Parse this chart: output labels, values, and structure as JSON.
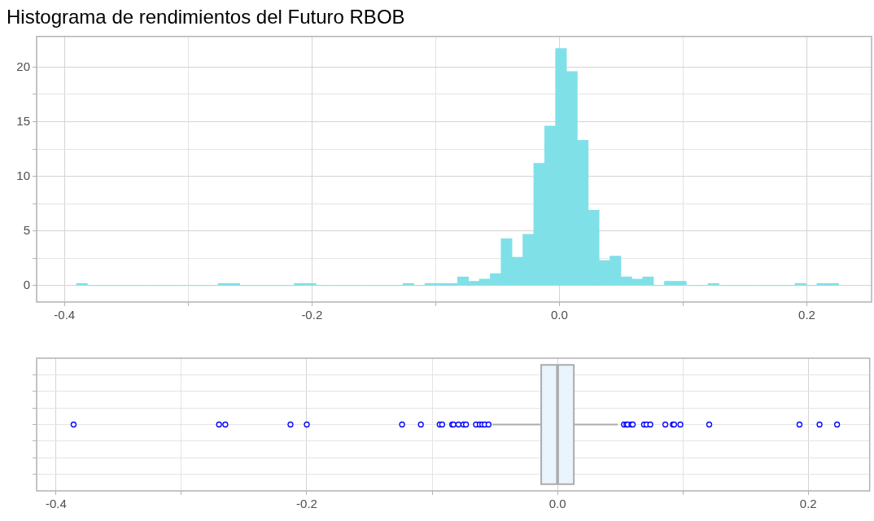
{
  "chart_data": [
    {
      "type": "histogram",
      "title": "Histograma de rendimientos del Futuro RBOB",
      "color": "#7fe0e8",
      "bins": [
        -0.3903,
        -0.3815,
        -0.3727,
        -0.3639,
        -0.3551,
        -0.3463,
        -0.3375,
        -0.3287,
        -0.3199,
        -0.3111,
        -0.3023,
        -0.2935,
        -0.2847,
        -0.2759,
        -0.2671,
        -0.2583,
        -0.2495,
        -0.2407,
        -0.2319,
        -0.2231,
        -0.2143,
        -0.2055,
        -0.1967,
        -0.1879,
        -0.1791,
        -0.1703,
        -0.1615,
        -0.1527,
        -0.1439,
        -0.1351,
        -0.1263,
        -0.1175,
        -0.1087,
        -0.0999,
        -0.0911,
        -0.0823,
        -0.0735,
        -0.0647,
        -0.0559,
        -0.0471,
        -0.0383,
        -0.0295,
        -0.0207,
        -0.0119,
        -0.0031,
        0.0057,
        0.0145,
        0.0233,
        0.0321,
        0.0409,
        0.0497,
        0.0585,
        0.0673,
        0.0761,
        0.0849,
        0.0937,
        0.1025,
        0.1113,
        0.1201,
        0.1289,
        0.1377,
        0.1465,
        0.1553,
        0.1641,
        0.1729,
        0.1817,
        0.1905,
        0.1993,
        0.2081,
        0.2169,
        0.2257
      ],
      "values": [
        0.2,
        0,
        0,
        0,
        0,
        0,
        0,
        0,
        0,
        0,
        0,
        0,
        0,
        0.2,
        0.2,
        0,
        0,
        0,
        0,
        0,
        0.2,
        0.2,
        0,
        0,
        0,
        0,
        0,
        0,
        0,
        0,
        0.2,
        0,
        0.2,
        0.2,
        0.2,
        0.8,
        0.4,
        0.6,
        1.1,
        4.3,
        2.6,
        4.7,
        11.2,
        14.6,
        21.7,
        19.6,
        13.3,
        6.9,
        2.3,
        2.7,
        0.8,
        0.6,
        0.8,
        0,
        0.4,
        0.4,
        0,
        0,
        0.2,
        0,
        0,
        0,
        0,
        0,
        0,
        0,
        0.2,
        0,
        0.2,
        0.2
      ],
      "xlim": [
        -0.4225,
        0.2523
      ],
      "xticks": [
        -0.4,
        {
          "value": -0.3,
          "label": null
        },
        -0.2,
        {
          "value": -0.1,
          "label": null
        },
        {
          "value": 0,
          "label": "0.0"
        },
        {
          "value": 0.1,
          "label": null
        },
        0.2
      ],
      "ylim": [
        -1.5,
        22.8
      ],
      "yticks": [
        0,
        {
          "value": 2.5,
          "label": null
        },
        5,
        {
          "value": 7.5,
          "label": null
        },
        10,
        {
          "value": 12.5,
          "label": null
        },
        15,
        {
          "value": 17.5,
          "label": null
        },
        20
      ],
      "grid": true
    },
    {
      "type": "box",
      "orientation": "horizontal",
      "categories": [
        null
      ],
      "color": "#eaf4fc",
      "boxes": [
        {
          "low": -0.052,
          "q1": -0.013,
          "median": 0.0,
          "q3": 0.013,
          "high": 0.048,
          "outliers": [
            -0.386,
            -0.27,
            -0.265,
            -0.213,
            -0.2,
            -0.124,
            -0.109,
            -0.094,
            -0.092,
            -0.084,
            -0.083,
            -0.079,
            -0.075,
            -0.073,
            -0.065,
            -0.062,
            -0.06,
            -0.058,
            -0.055,
            0.053,
            0.055,
            0.056,
            0.059,
            0.06,
            0.069,
            0.071,
            0.074,
            0.086,
            0.092,
            0.093,
            0.098,
            0.121,
            0.193,
            0.209,
            0.223
          ]
        }
      ],
      "xlim": [
        -0.4155,
        0.249
      ],
      "xticks": [
        -0.4,
        {
          "value": -0.3,
          "label": null
        },
        -0.2,
        {
          "value": -0.1,
          "label": null
        },
        {
          "value": 0,
          "label": "0.0"
        },
        {
          "value": 0.1,
          "label": null
        },
        0.2
      ],
      "tick_labels": "x",
      "grid": true
    }
  ]
}
